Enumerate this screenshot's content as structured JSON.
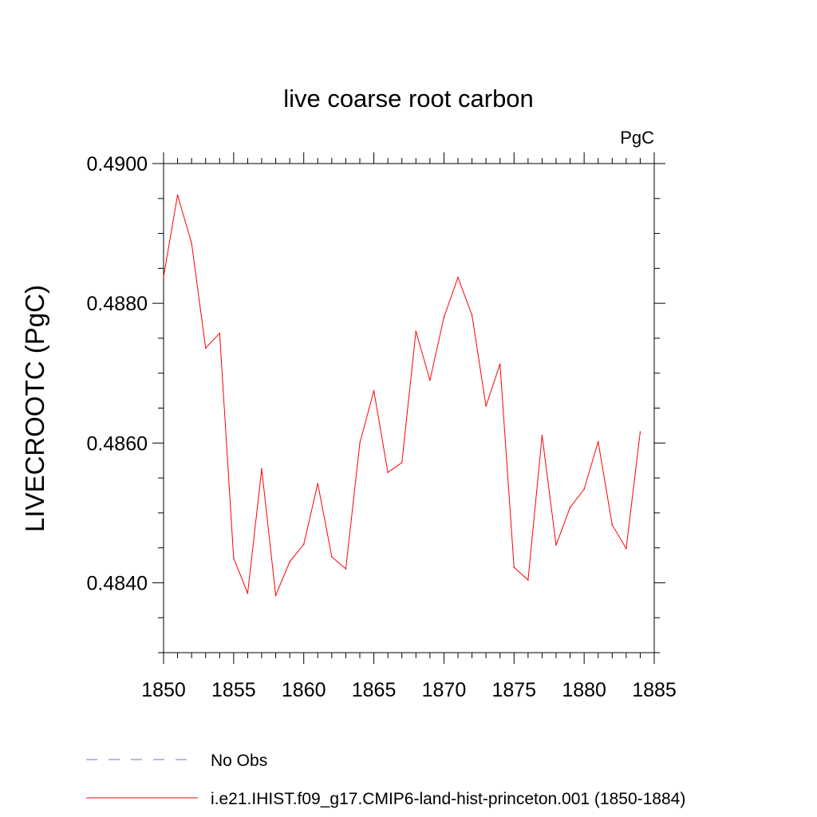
{
  "chart_data": {
    "type": "line",
    "title": "live coarse root carbon",
    "units": "PgC",
    "xlabel": "",
    "ylabel": "LIVECROOTC  (PgC)",
    "xlim": [
      1850,
      1885
    ],
    "ylim": [
      0.483,
      0.49
    ],
    "x_ticks": [
      1850,
      1855,
      1860,
      1865,
      1870,
      1875,
      1880,
      1885
    ],
    "x_tick_labels": [
      "1850",
      "1855",
      "1860",
      "1865",
      "1870",
      "1875",
      "1880",
      "1885"
    ],
    "y_ticks": [
      0.484,
      0.486,
      0.488,
      0.49
    ],
    "y_tick_labels": [
      "0.4840",
      "0.4860",
      "0.4880",
      "0.4900"
    ],
    "grid": false,
    "legend_position": "bottom",
    "x": [
      1850,
      1851,
      1852,
      1853,
      1854,
      1855,
      1856,
      1857,
      1858,
      1859,
      1860,
      1861,
      1862,
      1863,
      1864,
      1865,
      1866,
      1867,
      1868,
      1869,
      1870,
      1871,
      1872,
      1873,
      1874,
      1875,
      1876,
      1877,
      1878,
      1879,
      1880,
      1881,
      1882,
      1883,
      1884
    ],
    "series": [
      {
        "name": "i.e21.IHIST.f09_g17.CMIP6-land-hist-princeton.001 (1850-1884)",
        "color": "#ff0000",
        "style": "solid",
        "values": [
          0.48838,
          0.48955,
          0.48886,
          0.48736,
          0.48757,
          0.48435,
          0.48385,
          0.48563,
          0.48382,
          0.4843,
          0.48455,
          0.48542,
          0.48437,
          0.4842,
          0.486,
          0.48675,
          0.48558,
          0.48572,
          0.4876,
          0.4869,
          0.4878,
          0.48837,
          0.48783,
          0.48653,
          0.48713,
          0.48422,
          0.48404,
          0.48611,
          0.48454,
          0.48508,
          0.48534,
          0.48602,
          0.48483,
          0.48449,
          0.48616
        ]
      }
    ],
    "legend": [
      {
        "label": "No Obs",
        "color": "#7a6fb5",
        "style": "dashed"
      },
      {
        "label": "i.e21.IHIST.f09_g17.CMIP6-land-hist-princeton.001 (1850-1884)",
        "color": "#ff0000",
        "style": "solid"
      }
    ]
  }
}
